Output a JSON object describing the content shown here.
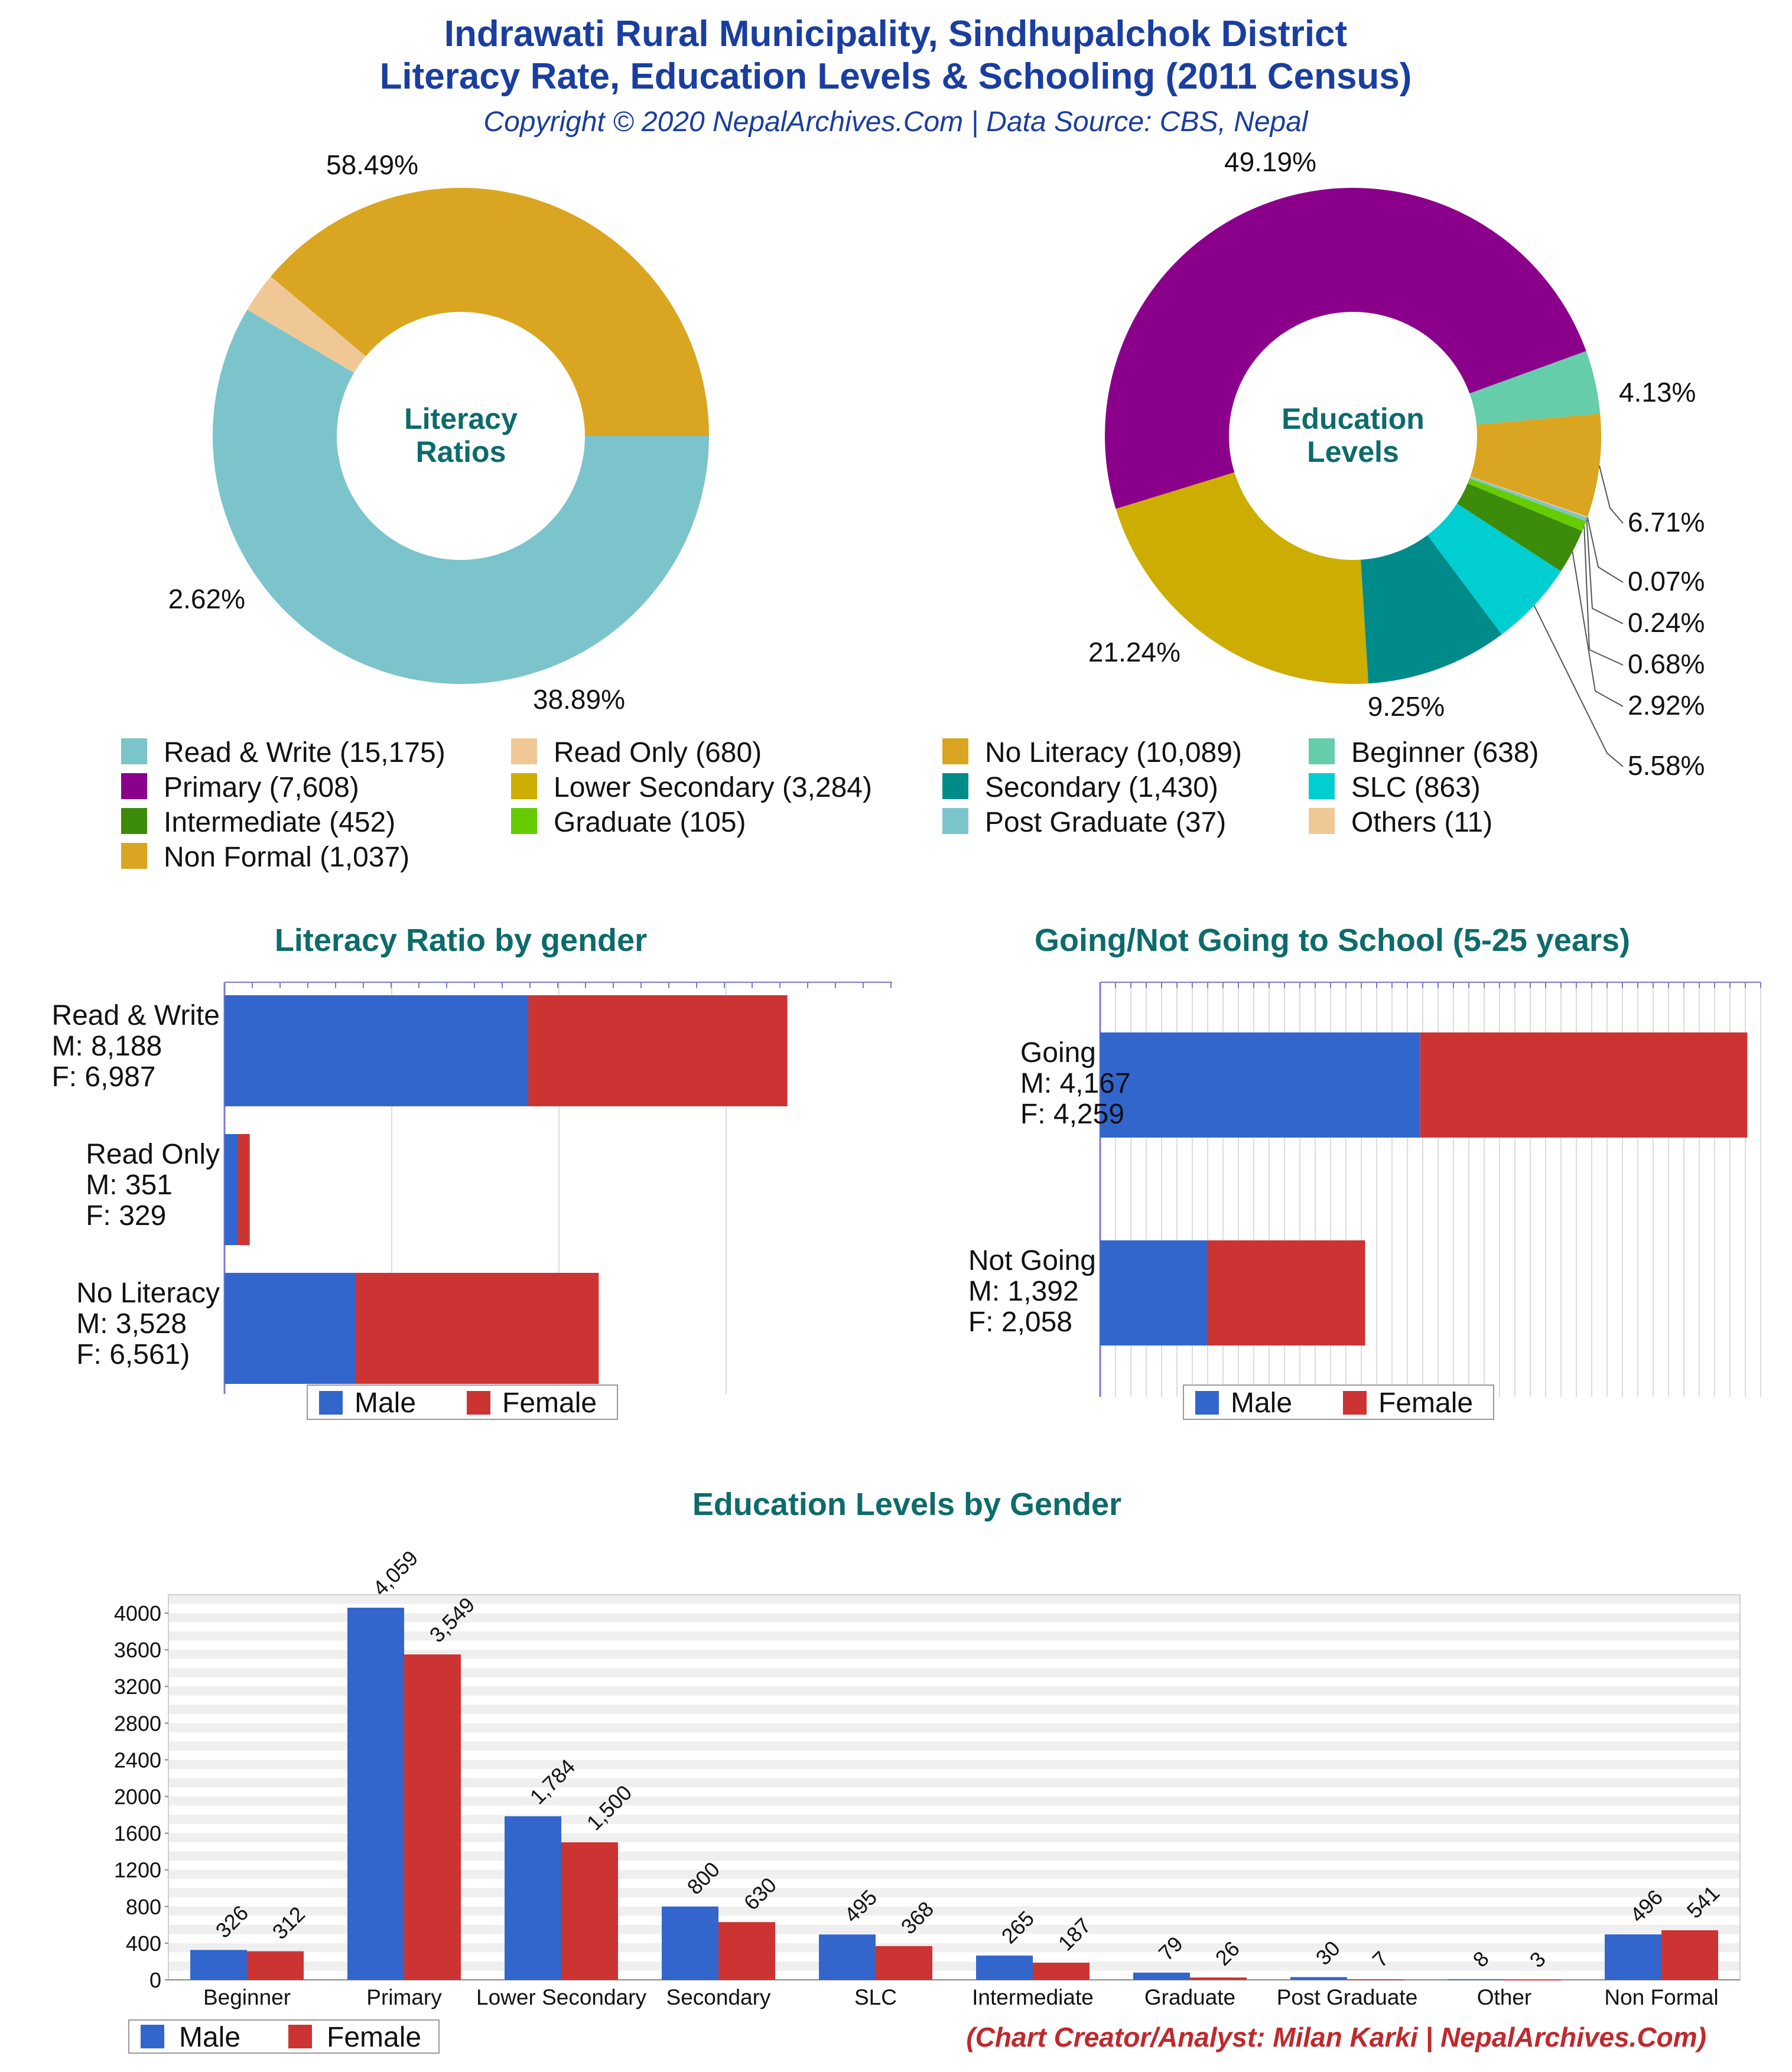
{
  "header": {
    "title_line1": "Indrawati Rural Municipality, Sindhupalchok District",
    "title_line2": "Literacy Rate, Education Levels & Schooling (2011 Census)",
    "subtitle": "Copyright © 2020 NepalArchives.Com | Data Source: CBS, Nepal"
  },
  "footer": {
    "credit": "(Chart Creator/Analyst: Milan Karki | NepalArchives.Com)"
  },
  "colors": {
    "title": "#1a3ea0",
    "section_title": "#0d6b6b",
    "male": "#3366cc",
    "female": "#cc3333",
    "credit": "#c0282d"
  },
  "chart_data": [
    {
      "type": "pie",
      "style": "donut",
      "center_label": [
        "Literacy",
        "Ratios"
      ],
      "slices": [
        {
          "label": "Read & Write",
          "value": 15175,
          "percent": "58.49%",
          "color": "#7cc4cc"
        },
        {
          "label": "Read Only",
          "value": 680,
          "percent": "2.62%",
          "color": "#f0c896"
        },
        {
          "label": "No Literacy",
          "value": 10089,
          "percent": "38.89%",
          "color": "#daa520"
        }
      ]
    },
    {
      "type": "pie",
      "style": "donut",
      "center_label": [
        "Education",
        "Levels"
      ],
      "slices": [
        {
          "label": "Primary",
          "value": 7608,
          "percent": "49.19%",
          "color": "#8b008b"
        },
        {
          "label": "Beginner",
          "value": 638,
          "percent": "4.13%",
          "color": "#66cdaa"
        },
        {
          "label": "Non Formal",
          "value": 1037,
          "percent": "6.71%",
          "color": "#daa520"
        },
        {
          "label": "Others",
          "value": 11,
          "percent": "0.07%",
          "color": "#f0c896"
        },
        {
          "label": "Post Graduate",
          "value": 37,
          "percent": "0.24%",
          "color": "#7cc4cc"
        },
        {
          "label": "Graduate",
          "value": 105,
          "percent": "0.68%",
          "color": "#66cc00"
        },
        {
          "label": "Intermediate",
          "value": 452,
          "percent": "2.92%",
          "color": "#3d8b0a"
        },
        {
          "label": "SLC",
          "value": 863,
          "percent": "5.58%",
          "color": "#00ced1"
        },
        {
          "label": "Secondary",
          "value": 1430,
          "percent": "9.25%",
          "color": "#008b8b"
        },
        {
          "label": "Lower Secondary",
          "value": 3284,
          "percent": "21.24%",
          "color": "#ccad00"
        }
      ]
    },
    {
      "type": "bar",
      "orientation": "horizontal",
      "stacked": true,
      "title": "Literacy Ratio by gender",
      "categories": [
        "Read & Write",
        "Read Only",
        "No Literacy"
      ],
      "category_labels": [
        [
          "Read & Write",
          "M: 8,188",
          "F: 6,987"
        ],
        [
          "Read Only",
          "M: 351",
          "F: 329"
        ],
        [
          "No Literacy",
          "M: 3,528",
          "F: 6,561)"
        ]
      ],
      "series": [
        {
          "name": "Male",
          "values": [
            8188,
            351,
            3528
          ]
        },
        {
          "name": "Female",
          "values": [
            6987,
            329,
            6561
          ]
        }
      ],
      "xlim": [
        0,
        18000
      ],
      "legend": "bottom"
    },
    {
      "type": "bar",
      "orientation": "horizontal",
      "stacked": true,
      "title": "Going/Not Going to School (5-25 years)",
      "categories": [
        "Going",
        "Not Going"
      ],
      "category_labels": [
        [
          "Going",
          "M: 4,167",
          "F: 4,259"
        ],
        [
          "Not Going",
          "M: 1,392",
          "F: 2,058"
        ]
      ],
      "series": [
        {
          "name": "Male",
          "values": [
            4167,
            1392
          ]
        },
        {
          "name": "Female",
          "values": [
            4259,
            2058
          ]
        }
      ],
      "xlim": [
        0,
        8600
      ],
      "legend": "bottom"
    },
    {
      "type": "bar",
      "orientation": "vertical",
      "title": "Education Levels by Gender",
      "categories": [
        "Beginner",
        "Primary",
        "Lower Secondary",
        "Secondary",
        "SLC",
        "Intermediate",
        "Graduate",
        "Post Graduate",
        "Other",
        "Non Formal"
      ],
      "series": [
        {
          "name": "Male",
          "values": [
            326,
            4059,
            1784,
            800,
            495,
            265,
            79,
            30,
            8,
            496
          ]
        },
        {
          "name": "Female",
          "values": [
            312,
            3549,
            1500,
            630,
            368,
            187,
            26,
            7,
            3,
            541
          ]
        }
      ],
      "data_labels": {
        "Male": [
          "326",
          "4,059",
          "1,784",
          "800",
          "495",
          "265",
          "79",
          "30",
          "8",
          "496"
        ],
        "Female": [
          "312",
          "3,549",
          "1,500",
          "630",
          "368",
          "187",
          "26",
          "7",
          "3",
          "541"
        ]
      },
      "yticks": [
        "0",
        "400",
        "800",
        "1200",
        "1600",
        "2000",
        "2400",
        "2800",
        "3200",
        "3600",
        "4000"
      ],
      "ylim": [
        0,
        4200
      ],
      "grid": true,
      "legend": "bottom-left"
    }
  ],
  "legend": {
    "items": [
      {
        "text": "Read & Write (15,175)",
        "color": "#7cc4cc"
      },
      {
        "text": "Read Only (680)",
        "color": "#f0c896"
      },
      {
        "text": "No Literacy (10,089)",
        "color": "#daa520"
      },
      {
        "text": "Beginner (638)",
        "color": "#66cdaa"
      },
      {
        "text": "Primary (7,608)",
        "color": "#8b008b"
      },
      {
        "text": "Lower Secondary (3,284)",
        "color": "#ccad00"
      },
      {
        "text": "Secondary (1,430)",
        "color": "#008b8b"
      },
      {
        "text": "SLC (863)",
        "color": "#00ced1"
      },
      {
        "text": "Intermediate (452)",
        "color": "#3d8b0a"
      },
      {
        "text": "Graduate (105)",
        "color": "#66cc00"
      },
      {
        "text": "Post Graduate (37)",
        "color": "#7cc4cc"
      },
      {
        "text": "Others (11)",
        "color": "#f0c896"
      },
      {
        "text": "Non Formal (1,037)",
        "color": "#daa520"
      }
    ]
  }
}
